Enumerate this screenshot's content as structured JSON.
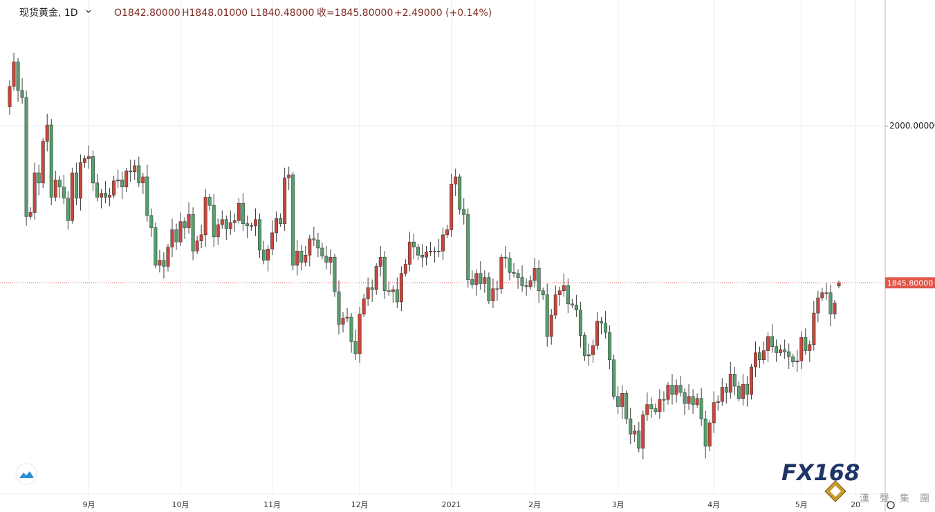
{
  "chart_data": {
    "type": "candlestick",
    "header": {
      "symbol": "现货黄金, 1D",
      "open": "O1842.80000",
      "high": "H1848.01000",
      "low": "L1840.48000",
      "close": "收=1845.80000",
      "change": "+2.49000 (+0.14%)"
    },
    "categories": [
      null,
      null,
      null,
      null,
      null,
      null,
      null,
      null,
      null,
      null,
      null,
      null,
      null,
      null,
      null,
      null,
      null,
      null,
      null,
      "9月",
      null,
      null,
      null,
      null,
      null,
      null,
      null,
      null,
      null,
      null,
      null,
      null,
      null,
      null,
      null,
      null,
      null,
      null,
      null,
      null,
      null,
      "10月",
      null,
      null,
      null,
      null,
      null,
      null,
      null,
      null,
      null,
      null,
      null,
      null,
      null,
      null,
      null,
      null,
      null,
      null,
      null,
      null,
      null,
      "11月",
      null,
      null,
      null,
      null,
      null,
      null,
      null,
      null,
      null,
      null,
      null,
      null,
      null,
      null,
      null,
      null,
      null,
      null,
      null,
      null,
      "12月",
      null,
      null,
      null,
      null,
      null,
      null,
      null,
      null,
      null,
      null,
      null,
      null,
      null,
      null,
      null,
      null,
      null,
      null,
      null,
      null,
      null,
      "2021",
      null,
      null,
      null,
      null,
      null,
      null,
      null,
      null,
      null,
      null,
      null,
      null,
      null,
      null,
      null,
      null,
      null,
      null,
      null,
      "2月",
      null,
      null,
      null,
      null,
      null,
      null,
      null,
      null,
      null,
      null,
      null,
      null,
      null,
      null,
      null,
      null,
      null,
      null,
      null,
      "3月",
      null,
      null,
      null,
      null,
      null,
      null,
      null,
      null,
      null,
      null,
      null,
      null,
      null,
      null,
      null,
      null,
      null,
      null,
      null,
      null,
      null,
      null,
      "4月",
      null,
      null,
      null,
      null,
      null,
      null,
      null,
      null,
      null,
      null,
      null,
      null,
      null,
      null,
      null,
      null,
      null,
      null,
      null,
      null,
      "5月",
      null,
      null,
      null,
      null,
      null,
      null,
      null,
      null,
      null,
      null,
      null,
      null,
      "20"
    ],
    "open": [
      2019,
      2039,
      2063,
      2035,
      2028,
      1911,
      1915,
      1954,
      1944,
      1985,
      2001,
      1930,
      1947,
      1940,
      1929,
      1907,
      1954,
      1929,
      1964,
      1968,
      1970,
      1944,
      1930,
      1934,
      1930,
      1932,
      1946,
      1947,
      1940,
      1956,
      1955,
      1961,
      1944,
      1950,
      1912,
      1900,
      1863,
      1868,
      1862,
      1881,
      1898,
      1886,
      1906,
      1900,
      1913,
      1877,
      1887,
      1893,
      1930,
      1922,
      1891,
      1903,
      1908,
      1899,
      1905,
      1907,
      1924,
      1904,
      1902,
      1902,
      1908,
      1878,
      1868,
      1879,
      1895,
      1909,
      1904,
      1949,
      1952,
      1863,
      1877,
      1866,
      1873,
      1889,
      1888,
      1880,
      1872,
      1866,
      1871,
      1837,
      1805,
      1811,
      1812,
      1788,
      1776,
      1815,
      1830,
      1841,
      1839,
      1862,
      1871,
      1838,
      1837,
      1839,
      1827,
      1855,
      1864,
      1886,
      1881,
      1873,
      1871,
      1876,
      1877,
      1877,
      1877,
      1893,
      1898,
      1943,
      1950,
      1918,
      1913,
      1849,
      1844,
      1855,
      1845,
      1851,
      1828,
      1840,
      1840,
      1871,
      1870,
      1856,
      1855,
      1851,
      1843,
      1842,
      1848,
      1860,
      1838,
      1834,
      1793,
      1814,
      1834,
      1838,
      1843,
      1825,
      1824,
      1819,
      1794,
      1774,
      1775,
      1784,
      1808,
      1806,
      1797,
      1770,
      1734,
      1724,
      1737,
      1712,
      1697,
      1700,
      1683,
      1716,
      1726,
      1722,
      1719,
      1731,
      1731,
      1745,
      1736,
      1745,
      1738,
      1727,
      1734,
      1726,
      1732,
      1712,
      1685,
      1708,
      1728,
      1729,
      1743,
      1738,
      1756,
      1744,
      1732,
      1746,
      1736,
      1763,
      1777,
      1770,
      1779,
      1793,
      1783,
      1777,
      1780,
      1778,
      1773,
      1768,
      1769,
      1792,
      1779,
      1785,
      1816,
      1831,
      1836,
      1836,
      1815,
      1842.8,
      null,
      null,
      null,
      null
    ],
    "high": [
      2045,
      2072,
      2067,
      2047,
      2035,
      1920,
      1964,
      1962,
      1988,
      2012,
      2007,
      1956,
      1951,
      1952,
      1936,
      1959,
      1964,
      1972,
      1971,
      1981,
      1976,
      1953,
      1938,
      1946,
      1939,
      1951,
      1957,
      1955,
      1959,
      1967,
      1967,
      1970,
      1954,
      1962,
      1919,
      1905,
      1878,
      1876,
      1884,
      1909,
      1904,
      1915,
      1910,
      1925,
      1920,
      1892,
      1903,
      1938,
      1933,
      1933,
      1909,
      1917,
      1912,
      1917,
      1914,
      1929,
      1934,
      1912,
      1905,
      1919,
      1914,
      1887,
      1883,
      1907,
      1916,
      1914,
      1959,
      1960,
      1955,
      1888,
      1883,
      1882,
      1893,
      1901,
      1895,
      1885,
      1882,
      1879,
      1874,
      1848,
      1817,
      1821,
      1816,
      1800,
      1822,
      1835,
      1851,
      1849,
      1865,
      1882,
      1877,
      1847,
      1843,
      1851,
      1862,
      1869,
      1896,
      1894,
      1884,
      1884,
      1882,
      1886,
      1881,
      1889,
      1900,
      1903,
      1953,
      1958,
      1953,
      1929,
      1919,
      1858,
      1859,
      1867,
      1858,
      1856,
      1850,
      1848,
      1874,
      1882,
      1876,
      1865,
      1859,
      1863,
      1850,
      1853,
      1870,
      1868,
      1841,
      1845,
      1820,
      1843,
      1842,
      1855,
      1850,
      1830,
      1834,
      1827,
      1797,
      1786,
      1790,
      1817,
      1812,
      1818,
      1804,
      1775,
      1744,
      1745,
      1740,
      1723,
      1706,
      1709,
      1720,
      1738,
      1733,
      1727,
      1741,
      1739,
      1748,
      1756,
      1751,
      1754,
      1742,
      1746,
      1741,
      1737,
      1742,
      1720,
      1711,
      1739,
      1735,
      1752,
      1747,
      1768,
      1763,
      1749,
      1756,
      1754,
      1766,
      1788,
      1783,
      1788,
      1797,
      1805,
      1790,
      1785,
      1790,
      1786,
      1776,
      1780,
      1798,
      1801,
      1789,
      1828,
      1838,
      1841,
      1846,
      1844,
      1829,
      1848.01,
      null,
      null,
      null,
      null
    ],
    "low": [
      2011,
      2035,
      2024,
      2022,
      1902,
      1908,
      1908,
      1932,
      1939,
      1975,
      1922,
      1926,
      1929,
      1923,
      1898,
      1904,
      1922,
      1917,
      1959,
      1958,
      1936,
      1926,
      1919,
      1924,
      1921,
      1929,
      1939,
      1928,
      1935,
      1945,
      1947,
      1940,
      1933,
      1906,
      1891,
      1860,
      1856,
      1850,
      1857,
      1871,
      1878,
      1882,
      1889,
      1894,
      1868,
      1874,
      1880,
      1881,
      1917,
      1881,
      1883,
      1899,
      1888,
      1893,
      1896,
      1904,
      1897,
      1890,
      1897,
      1892,
      1870,
      1864,
      1857,
      1873,
      1886,
      1901,
      1897,
      1937,
      1858,
      1853,
      1858,
      1862,
      1862,
      1882,
      1871,
      1869,
      1859,
      1854,
      1832,
      1795,
      1797,
      1807,
      1777,
      1770,
      1767,
      1812,
      1823,
      1827,
      1834,
      1852,
      1830,
      1833,
      1826,
      1821,
      1818,
      1852,
      1857,
      1869,
      1868,
      1861,
      1863,
      1872,
      1866,
      1871,
      1868,
      1890,
      1891,
      1931,
      1913,
      1903,
      1841,
      1840,
      1833,
      1839,
      1836,
      1825,
      1821,
      1828,
      1835,
      1860,
      1848,
      1851,
      1840,
      1837,
      1833,
      1839,
      1841,
      1826,
      1829,
      1783,
      1785,
      1810,
      1823,
      1832,
      1816,
      1821,
      1812,
      1782,
      1769,
      1764,
      1767,
      1780,
      1795,
      1791,
      1761,
      1731,
      1717,
      1712,
      1707,
      1687,
      1689,
      1679,
      1672,
      1710,
      1713,
      1716,
      1712,
      1719,
      1726,
      1726,
      1728,
      1734,
      1716,
      1721,
      1717,
      1723,
      1705,
      1673,
      1680,
      1698,
      1720,
      1725,
      1727,
      1732,
      1735,
      1729,
      1725,
      1724,
      1731,
      1753,
      1762,
      1766,
      1768,
      1777,
      1768,
      1774,
      1771,
      1761,
      1763,
      1758,
      1761,
      1775,
      1768,
      1779,
      1807,
      1828,
      1829,
      1803,
      1810,
      1840.48,
      null,
      null,
      null,
      null
    ],
    "close": [
      2039,
      2063,
      2035,
      2028,
      1911,
      1915,
      1954,
      1944,
      1985,
      2001,
      1930,
      1947,
      1940,
      1929,
      1907,
      1954,
      1929,
      1964,
      1968,
      1970,
      1944,
      1930,
      1934,
      1930,
      1932,
      1946,
      1947,
      1940,
      1956,
      1955,
      1961,
      1944,
      1950,
      1912,
      1900,
      1863,
      1868,
      1862,
      1881,
      1898,
      1886,
      1906,
      1900,
      1913,
      1877,
      1887,
      1893,
      1930,
      1922,
      1891,
      1903,
      1908,
      1899,
      1905,
      1907,
      1924,
      1904,
      1902,
      1902,
      1908,
      1878,
      1868,
      1879,
      1895,
      1909,
      1904,
      1949,
      1952,
      1863,
      1877,
      1866,
      1873,
      1889,
      1888,
      1880,
      1872,
      1866,
      1871,
      1837,
      1805,
      1811,
      1812,
      1788,
      1776,
      1815,
      1830,
      1841,
      1839,
      1862,
      1871,
      1838,
      1837,
      1839,
      1827,
      1855,
      1864,
      1886,
      1881,
      1873,
      1871,
      1876,
      1877,
      1877,
      1877,
      1893,
      1898,
      1943,
      1950,
      1918,
      1913,
      1849,
      1844,
      1855,
      1845,
      1851,
      1828,
      1840,
      1840,
      1871,
      1870,
      1856,
      1855,
      1851,
      1843,
      1842,
      1848,
      1860,
      1838,
      1834,
      1793,
      1814,
      1834,
      1838,
      1843,
      1825,
      1824,
      1819,
      1794,
      1774,
      1775,
      1784,
      1808,
      1806,
      1797,
      1770,
      1734,
      1724,
      1737,
      1712,
      1697,
      1700,
      1683,
      1716,
      1726,
      1722,
      1719,
      1731,
      1731,
      1745,
      1736,
      1745,
      1738,
      1727,
      1734,
      1726,
      1732,
      1712,
      1685,
      1708,
      1728,
      1729,
      1743,
      1738,
      1756,
      1744,
      1732,
      1746,
      1736,
      1763,
      1777,
      1770,
      1779,
      1793,
      1783,
      1777,
      1780,
      1778,
      1773,
      1768,
      1769,
      1792,
      1779,
      1785,
      1816,
      1831,
      1836,
      1836,
      1815,
      1826,
      1845.8,
      null,
      null,
      null,
      null
    ],
    "ylim": [
      1638,
      2124
    ],
    "yticks": [
      {
        "value": 2000,
        "label": "2000.00000"
      }
    ],
    "last_price": {
      "value": 1845.8,
      "label": "1845.80000"
    },
    "up_color": "#c9463b",
    "down_color": "#55a06c",
    "grid": true
  },
  "watermark": {
    "brand": "FX168",
    "group": "漢聲集團"
  }
}
